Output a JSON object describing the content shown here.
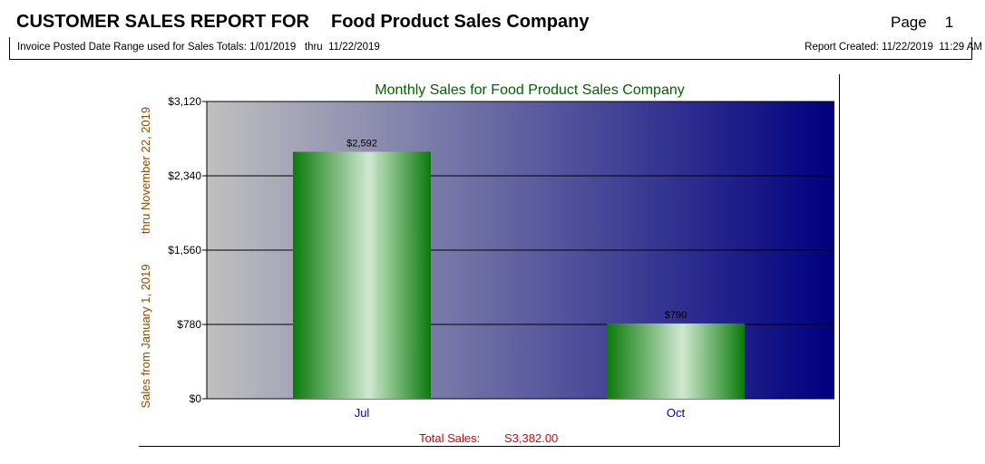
{
  "header": {
    "title_prefix": "CUSTOMER SALES REPORT FOR",
    "company": "Food Product Sales Company",
    "page_label": "Page",
    "page_number": "1",
    "date_range_label": "Invoice Posted Date Range used for Sales Totals: 1/01/2019   thru  11/22/2019",
    "report_created": "Report Created: 11/22/2019  11:29 AM"
  },
  "chart_data": {
    "type": "bar",
    "title": "Monthly Sales for Food Product Sales Company",
    "ylabel_lines": [
      "Sales from January  1, 2019",
      "thru November 22, 2019"
    ],
    "categories": [
      "Jul",
      "Oct"
    ],
    "values": [
      2592,
      790
    ],
    "data_labels": [
      "$2,592",
      "$790"
    ],
    "ylim": [
      0,
      3120
    ],
    "yticks": [
      0,
      780,
      1560,
      2340,
      3120
    ],
    "ytick_labels": [
      "$0",
      "$780",
      "$1,560",
      "$2,340",
      "$3,120"
    ],
    "grid": true,
    "footer_label": "Total Sales:",
    "footer_value": "S3,382.00",
    "colors": {
      "bar": "#0b7a0b",
      "bar_highlight": "#cfe8cf",
      "background_left": "#c0c0c0",
      "background_right": "#000080",
      "title": "#006400",
      "ylabel": "#8b4a00",
      "category": "#0000cc",
      "footer": "#e00000"
    }
  }
}
